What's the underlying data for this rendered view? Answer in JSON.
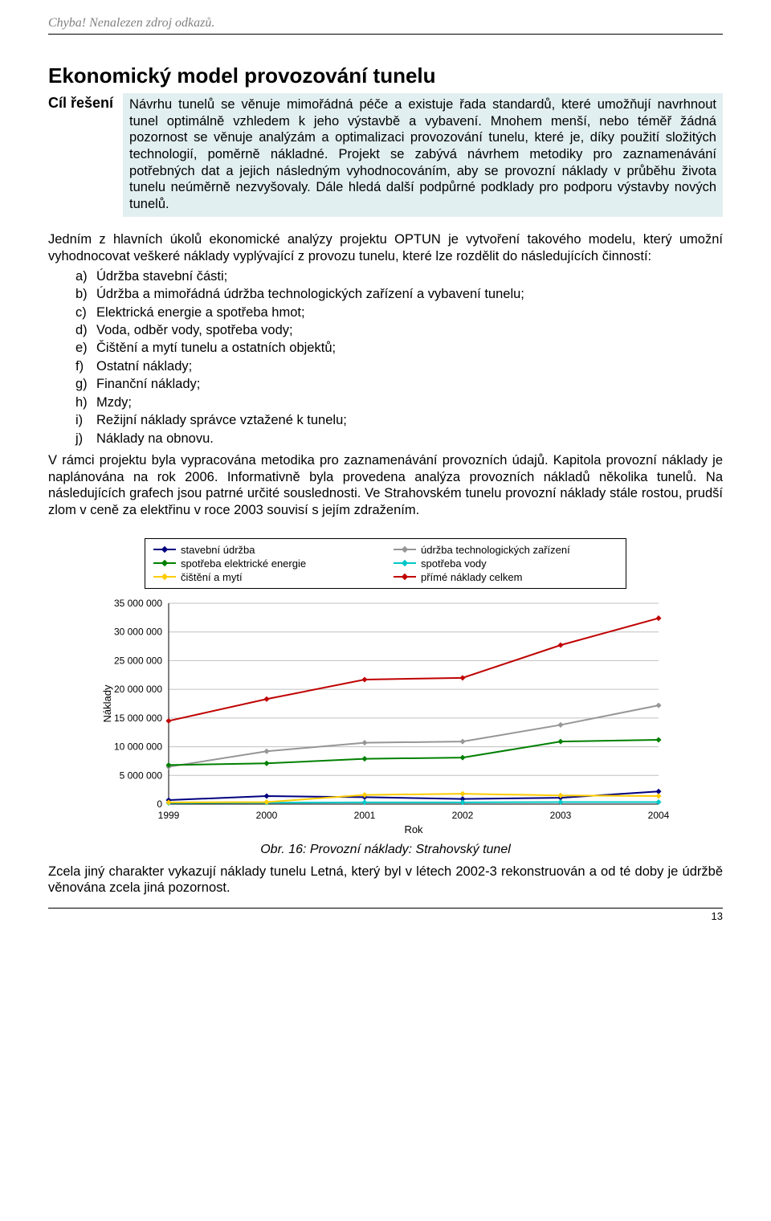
{
  "header_ref": "Chyba! Nenalezen zdroj odkazů.",
  "section_title": "Ekonomický model provozování tunelu",
  "cil_label": "Cíl řešení",
  "cil_text": "Návrhu tunelů se věnuje mimořádná péče a existuje řada standardů, které umožňují navrhnout tunel optimálně vzhledem k jeho výstavbě a vybavení. Mnohem menší, nebo téměř žádná pozornost se věnuje analýzám a optimalizaci provozování tunelu, které je, díky použití složitých technologií, poměrně nákladné. Projekt se zabývá návrhem metodiky pro zaznamenávání potřebných dat a jejich následným vyhodnocováním, aby se provozní náklady v průběhu života tunelu neúměrně nezvyšovaly. Dále hledá další podpůrné podklady pro podporu výstavby nových tunelů.",
  "intro_p": "Jedním z hlavních úkolů ekonomické analýzy projektu OPTUN je vytvoření takového modelu, který umožní vyhodnocovat veškeré náklady vyplývající z provozu tunelu, které lze rozdělit do následujících činností:",
  "list_items": [
    {
      "m": "a)",
      "t": "Údržba stavební části;"
    },
    {
      "m": "b)",
      "t": "Údržba a mimořádná údržba technologických zařízení a vybavení tunelu;"
    },
    {
      "m": "c)",
      "t": "Elektrická energie a spotřeba hmot;"
    },
    {
      "m": "d)",
      "t": "Voda, odběr vody, spotřeba vody;"
    },
    {
      "m": "e)",
      "t": "Čištění a mytí tunelu a ostatních objektů;"
    },
    {
      "m": "f)",
      "t": "Ostatní náklady;"
    },
    {
      "m": "g)",
      "t": "Finanční náklady;"
    },
    {
      "m": "h)",
      "t": "Mzdy;"
    },
    {
      "m": "i)",
      "t": "Režijní náklady správce vztažené k tunelu;"
    },
    {
      "m": "j)",
      "t": "Náklady na obnovu."
    }
  ],
  "para2": "V rámci projektu byla vypracována metodika pro zaznamenávání provozních údajů. Kapitola provozní náklady je naplánována na rok 2006. Informativně byla provedena analýza provozních nákladů několika tunelů. Na následujících grafech jsou patrné určité souslednosti. Ve Strahovském tunelu provozní náklady stále rostou, prudší zlom v ceně za elektřinu v roce 2003 souvisí s jejím zdražením.",
  "chart": {
    "type": "line",
    "x_label": "Rok",
    "y_label": "Náklady",
    "x_values": [
      1999,
      2000,
      2001,
      2002,
      2003,
      2004
    ],
    "y_ticks": [
      0,
      5000000,
      10000000,
      15000000,
      20000000,
      25000000,
      30000000,
      35000000
    ],
    "y_tick_labels": [
      "0",
      "5 000 000",
      "10 000 000",
      "15 000 000",
      "20 000 000",
      "25 000 000",
      "30 000 000",
      "35 000 000"
    ],
    "ylim": [
      0,
      35000000
    ],
    "grid_color": "#c0c0c0",
    "background_color": "#ffffff",
    "marker_size": 5,
    "line_width": 2,
    "series": [
      {
        "name": "stavební údržba",
        "color": "#000080",
        "values": [
          700000,
          1400000,
          1200000,
          900000,
          1100000,
          2200000
        ]
      },
      {
        "name": "údržba technologických zařízení",
        "color": "#969696",
        "values": [
          6500000,
          9200000,
          10700000,
          10900000,
          13800000,
          17200000
        ]
      },
      {
        "name": "spotřeba elektrické energie",
        "color": "#008000",
        "values": [
          6800000,
          7100000,
          7900000,
          8100000,
          10900000,
          11200000
        ]
      },
      {
        "name": "spotřeba vody",
        "color": "#00c8c8",
        "values": [
          200000,
          250000,
          300000,
          300000,
          350000,
          350000
        ]
      },
      {
        "name": "čištění a mytí",
        "color": "#ffcc00",
        "values": [
          300000,
          350000,
          1600000,
          1800000,
          1500000,
          1400000
        ]
      },
      {
        "name": "přímé náklady celkem",
        "color": "#c00000",
        "values": [
          14500000,
          18300000,
          21700000,
          22000000,
          27700000,
          32400000
        ]
      }
    ],
    "legend": [
      {
        "label": "stavební údržba",
        "color": "#000080"
      },
      {
        "label": "údržba technologických zařízení",
        "color": "#969696"
      },
      {
        "label": "spotřeba elektrické energie",
        "color": "#008000"
      },
      {
        "label": "spotřeba vody",
        "color": "#00c8c8"
      },
      {
        "label": "čištění a mytí",
        "color": "#ffcc00"
      },
      {
        "label": "přímé náklady celkem",
        "color": "#c00000"
      }
    ]
  },
  "caption": "Obr. 16: Provozní náklady: Strahovský tunel",
  "para3": "Zcela jiný charakter vykazují náklady tunelu Letná, který byl v létech 2002-3 rekonstruován a od té doby je údržbě věnována zcela jiná pozornost.",
  "page_number": "13"
}
